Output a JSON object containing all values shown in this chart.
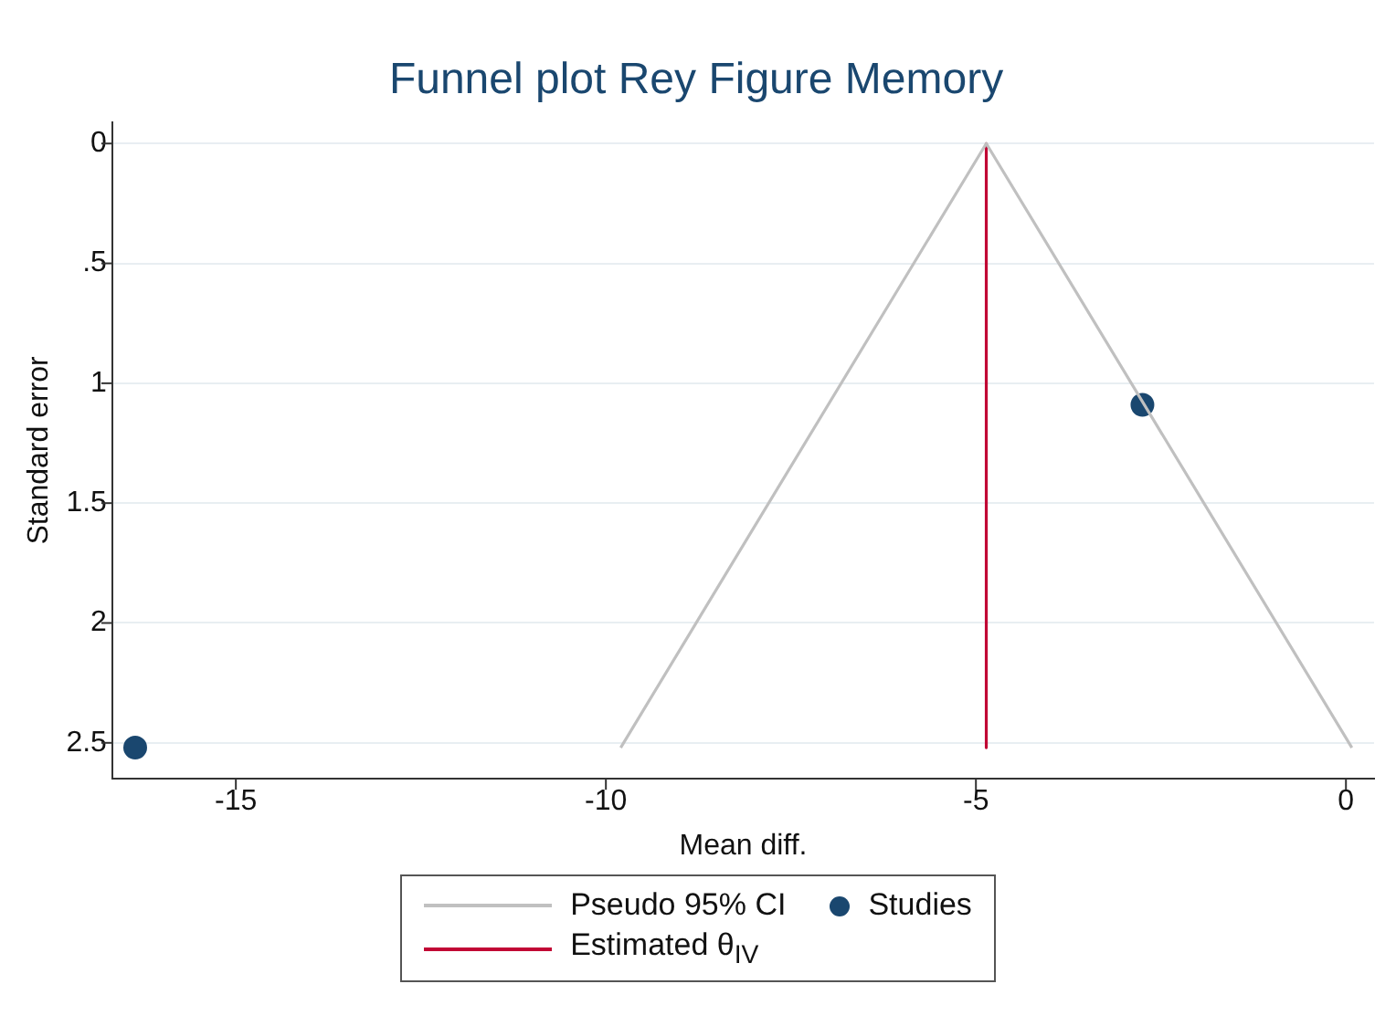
{
  "chart_data": {
    "type": "scatter",
    "title": "Funnel plot Rey Figure Memory",
    "xlabel": "Mean diff.",
    "ylabel": "Standard error",
    "xlim": [
      -16.67,
      0.38
    ],
    "xticks": [
      -15,
      -10,
      -5,
      0
    ],
    "ylim": [
      2.65,
      -0.09
    ],
    "yticks": [
      0,
      {
        "value": 0.5,
        "label": ".5"
      },
      1,
      1.5,
      2,
      2.5
    ],
    "grid": "y",
    "legend": "bottom",
    "series": [
      {
        "name": "Pseudo 95% CI",
        "type": "line",
        "marker": "none",
        "color": "#c0c0c0",
        "x": [
          -9.8,
          -4.86,
          0.08
        ],
        "values": [
          2.52,
          0,
          2.52
        ]
      },
      {
        "name": "Studies",
        "marker": "circle",
        "color": "#1a476f",
        "x": [
          -2.75,
          -16.36
        ],
        "values": [
          1.09,
          2.52
        ]
      },
      {
        "name": "Estimated θ$_{IV}$",
        "type": "line",
        "marker": "none",
        "color": "#c10534",
        "x": [
          -4.86,
          -4.86
        ],
        "values": [
          0,
          2.52
        ]
      }
    ]
  }
}
